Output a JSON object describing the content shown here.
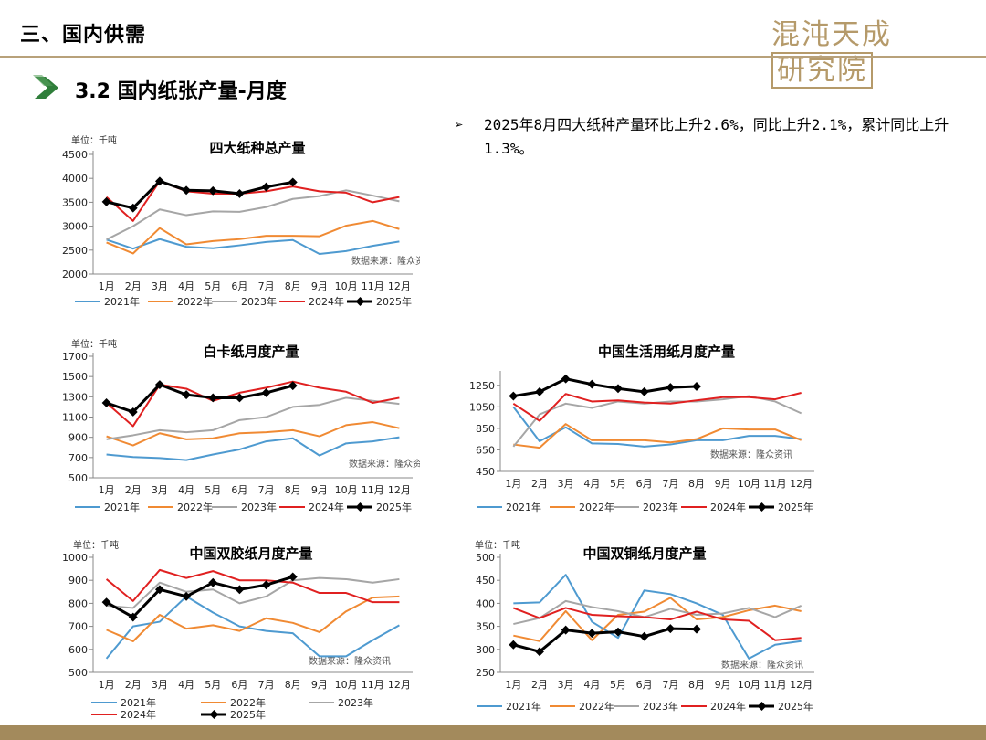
{
  "header": {
    "section_title": "三、国内供需",
    "logo_text": "混沌天成",
    "logo_box_text": "研究院",
    "subtitle": "3.2 国内纸张产量-月度",
    "bullet_mark": "➢",
    "bullet_text": "2025年8月四大纸种产量环比上升2.6%，同比上升2.1%，累计同比上升1.3%。"
  },
  "colors": {
    "2021年": "#4e9ad0",
    "2022年": "#f08a33",
    "2023年": "#a6a6a6",
    "2024年": "#e02020",
    "2025年": "#000000",
    "accent": "#b59a6a"
  },
  "chart_data": [
    {
      "id": "c1",
      "type": "line",
      "title": "四大纸种总产量",
      "unit_label": "单位：千吨",
      "source_label": "数据来源：隆众资讯",
      "categories": [
        "1月",
        "2月",
        "3月",
        "4月",
        "5月",
        "6月",
        "7月",
        "8月",
        "9月",
        "10月",
        "11月",
        "12月"
      ],
      "ylim": [
        2000,
        4500
      ],
      "yticks": [
        2000,
        2500,
        3000,
        3500,
        4000,
        4500
      ],
      "series": [
        {
          "name": "2021年",
          "values": [
            2720,
            2530,
            2730,
            2570,
            2540,
            2600,
            2670,
            2710,
            2420,
            2480,
            2590,
            2680
          ]
        },
        {
          "name": "2022年",
          "values": [
            2660,
            2430,
            2960,
            2620,
            2690,
            2730,
            2800,
            2800,
            2790,
            3010,
            3110,
            2940
          ]
        },
        {
          "name": "2023年",
          "values": [
            2720,
            3000,
            3350,
            3230,
            3310,
            3300,
            3400,
            3570,
            3630,
            3750,
            3640,
            3520
          ]
        },
        {
          "name": "2024年",
          "values": [
            3610,
            3110,
            3940,
            3730,
            3680,
            3680,
            3730,
            3830,
            3730,
            3700,
            3500,
            3610
          ]
        },
        {
          "name": "2025年",
          "values": [
            3510,
            3380,
            3940,
            3750,
            3740,
            3680,
            3820,
            3920,
            null,
            null,
            null,
            null
          ]
        }
      ]
    },
    {
      "id": "c2",
      "type": "line",
      "title": "白卡纸月度产量",
      "unit_label": "单位：千吨",
      "source_label": "数据来源：隆众资讯",
      "categories": [
        "1月",
        "2月",
        "3月",
        "4月",
        "5月",
        "6月",
        "7月",
        "8月",
        "9月",
        "10月",
        "11月",
        "12月"
      ],
      "ylim": [
        500,
        1700
      ],
      "yticks": [
        500,
        700,
        900,
        1100,
        1300,
        1500,
        1700
      ],
      "series": [
        {
          "name": "2021年",
          "values": [
            730,
            705,
            695,
            675,
            730,
            780,
            860,
            890,
            720,
            840,
            860,
            900
          ]
        },
        {
          "name": "2022年",
          "values": [
            910,
            820,
            940,
            880,
            890,
            940,
            950,
            970,
            910,
            1020,
            1050,
            990
          ]
        },
        {
          "name": "2023年",
          "values": [
            880,
            920,
            970,
            950,
            970,
            1070,
            1100,
            1200,
            1220,
            1290,
            1260,
            1230
          ]
        },
        {
          "name": "2024年",
          "values": [
            1240,
            1010,
            1420,
            1380,
            1260,
            1340,
            1390,
            1450,
            1390,
            1350,
            1240,
            1290
          ]
        },
        {
          "name": "2025年",
          "values": [
            1240,
            1150,
            1420,
            1320,
            1290,
            1290,
            1340,
            1410,
            null,
            null,
            null,
            null
          ]
        }
      ]
    },
    {
      "id": "c3",
      "type": "line",
      "title": "中国生活用纸月度产量",
      "source_label": "数据来源：隆众资讯",
      "categories": [
        "1月",
        "2月",
        "3月",
        "4月",
        "5月",
        "6月",
        "7月",
        "8月",
        "9月",
        "10月",
        "11月",
        "12月"
      ],
      "ylim": [
        450,
        1350
      ],
      "yticks": [
        450,
        650,
        850,
        1050,
        1250
      ],
      "series": [
        {
          "name": "2021年",
          "values": [
            1050,
            730,
            860,
            710,
            705,
            680,
            700,
            740,
            740,
            780,
            780,
            750
          ]
        },
        {
          "name": "2022年",
          "values": [
            700,
            670,
            890,
            740,
            740,
            740,
            720,
            750,
            850,
            840,
            840,
            740
          ]
        },
        {
          "name": "2023年",
          "values": [
            680,
            980,
            1080,
            1040,
            1100,
            1080,
            1100,
            1100,
            1120,
            1150,
            1100,
            990
          ]
        },
        {
          "name": "2024年",
          "values": [
            1080,
            920,
            1170,
            1100,
            1110,
            1090,
            1080,
            1110,
            1140,
            1140,
            1120,
            1180
          ]
        },
        {
          "name": "2025年",
          "values": [
            1150,
            1190,
            1310,
            1260,
            1220,
            1190,
            1230,
            1240,
            null,
            null,
            null,
            null
          ]
        }
      ]
    },
    {
      "id": "c4",
      "type": "line",
      "title": "中国双胶纸月度产量",
      "unit_label": "单位：千吨",
      "source_label": "数据来源：隆众资讯",
      "categories": [
        "1月",
        "2月",
        "3月",
        "4月",
        "5月",
        "6月",
        "7月",
        "8月",
        "9月",
        "10月",
        "11月",
        "12月"
      ],
      "ylim": [
        500,
        1000
      ],
      "yticks": [
        500,
        600,
        700,
        800,
        900,
        1000
      ],
      "series": [
        {
          "name": "2021年",
          "values": [
            560,
            700,
            720,
            830,
            760,
            700,
            680,
            670,
            570,
            570,
            640,
            705
          ]
        },
        {
          "name": "2022年",
          "values": [
            685,
            635,
            750,
            690,
            705,
            680,
            735,
            715,
            675,
            765,
            825,
            830
          ]
        },
        {
          "name": "2023年",
          "values": [
            790,
            780,
            890,
            850,
            860,
            800,
            830,
            900,
            910,
            905,
            890,
            905
          ]
        },
        {
          "name": "2024年",
          "values": [
            905,
            810,
            945,
            910,
            940,
            900,
            900,
            890,
            845,
            845,
            805,
            805
          ]
        },
        {
          "name": "2025年",
          "values": [
            805,
            740,
            860,
            830,
            890,
            860,
            880,
            915,
            null,
            null,
            null,
            null
          ]
        }
      ]
    },
    {
      "id": "c5",
      "type": "line",
      "title": "中国双铜纸月度产量",
      "unit_label": "单位：千吨",
      "source_label": "数据来源：隆众资讯",
      "categories": [
        "1月",
        "2月",
        "3月",
        "4月",
        "5月",
        "6月",
        "7月",
        "8月",
        "9月",
        "10月",
        "11月",
        "12月"
      ],
      "ylim": [
        250,
        500
      ],
      "yticks": [
        250,
        300,
        350,
        400,
        450,
        500
      ],
      "series": [
        {
          "name": "2021年",
          "values": [
            400,
            402,
            462,
            360,
            325,
            428,
            420,
            400,
            375,
            280,
            310,
            318
          ]
        },
        {
          "name": "2022年",
          "values": [
            330,
            318,
            383,
            320,
            375,
            382,
            412,
            365,
            370,
            385,
            395,
            383
          ]
        },
        {
          "name": "2023年",
          "values": [
            355,
            368,
            405,
            392,
            383,
            370,
            388,
            375,
            378,
            390,
            370,
            395
          ]
        },
        {
          "name": "2024年",
          "values": [
            390,
            368,
            390,
            375,
            372,
            370,
            365,
            382,
            365,
            362,
            320,
            325
          ]
        },
        {
          "name": "2025年",
          "values": [
            310,
            295,
            342,
            335,
            338,
            328,
            345,
            344,
            null,
            null,
            null,
            null
          ]
        }
      ]
    }
  ]
}
